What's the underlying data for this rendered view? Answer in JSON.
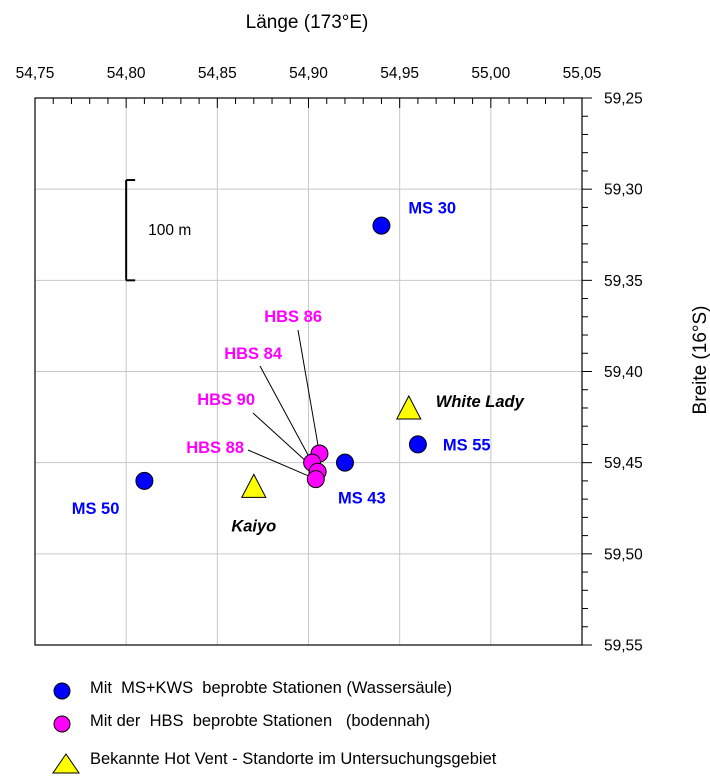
{
  "chart_data": {
    "type": "scatter",
    "title": "Länge (173°E)",
    "xlabel": "Länge (173°E)",
    "ylabel": "Breite (16°S)",
    "xlim": [
      54.75,
      55.05
    ],
    "ylim": [
      59.55,
      59.25
    ],
    "y_axis_inverted": true,
    "grid": true,
    "x_ticks": [
      54.75,
      54.8,
      54.85,
      54.9,
      54.95,
      55.0,
      55.05
    ],
    "x_tick_labels": [
      "54,75",
      "54,80",
      "54,85",
      "54,90",
      "54,95",
      "55,00",
      "55,05"
    ],
    "y_ticks": [
      59.25,
      59.3,
      59.35,
      59.4,
      59.45,
      59.5,
      59.55
    ],
    "y_tick_labels": [
      "59,25",
      "59,30",
      "59,35",
      "59,40",
      "59,45",
      "59,50",
      "59,55"
    ],
    "scale_bar": {
      "label": "100 m",
      "x": 54.8,
      "y_from": 59.295,
      "y_to": 59.35
    },
    "series": [
      {
        "name": "Mit  MS+KWS  beprobte Stationen (Wassersäule)",
        "marker": "circle",
        "color": "#0000ff",
        "points": [
          {
            "label": "MS 30",
            "x": 54.94,
            "y": 59.32
          },
          {
            "label": "MS 55",
            "x": 54.96,
            "y": 59.44
          },
          {
            "label": "MS 43",
            "x": 54.92,
            "y": 59.45
          },
          {
            "label": "MS 50",
            "x": 54.81,
            "y": 59.46
          }
        ]
      },
      {
        "name": "Mit der  HBS  beprobte Stationen   (bodennah)",
        "marker": "circle",
        "color": "#ff00ff",
        "points": [
          {
            "label": "HBS 86",
            "x": 54.906,
            "y": 59.445
          },
          {
            "label": "HBS 84",
            "x": 54.902,
            "y": 59.45
          },
          {
            "label": "HBS 90",
            "x": 54.905,
            "y": 59.455
          },
          {
            "label": "HBS 88",
            "x": 54.904,
            "y": 59.459
          }
        ]
      },
      {
        "name": "Bekannte Hot Vent - Standorte im Untersuchungsgebiet",
        "marker": "triangle",
        "color": "#ffff00",
        "points": [
          {
            "label": "White Lady",
            "x": 54.955,
            "y": 59.42
          },
          {
            "label": "Kaiyo",
            "x": 54.87,
            "y": 59.463
          }
        ]
      }
    ]
  },
  "legend": [
    {
      "marker": "circle",
      "color": "#0000ff",
      "label": "Mit  MS+KWS  beprobte Stationen (Wassersäule)"
    },
    {
      "marker": "circle",
      "color": "#ff00ff",
      "label": "Mit der  HBS  beprobte Stationen   (bodennah)"
    },
    {
      "marker": "triangle",
      "color": "#ffff00",
      "label": "Bekannte Hot Vent - Standorte im Untersuchungsgebiet"
    }
  ]
}
